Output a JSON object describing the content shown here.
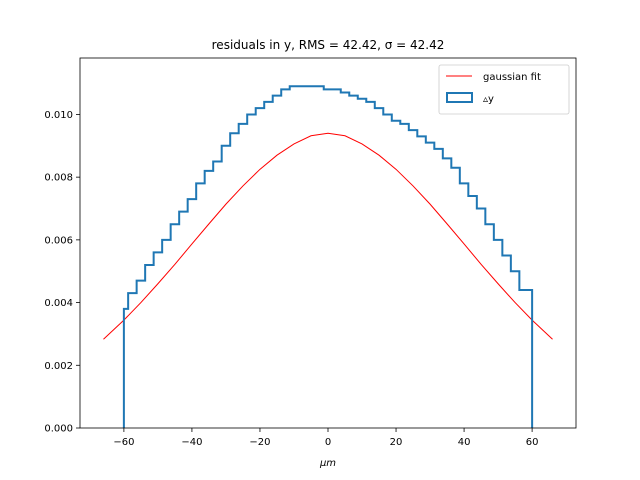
{
  "chart_data": {
    "type": "histogram",
    "title": "residuals in y, RMS = 42.42, σ = 42.42",
    "xlabel": "μm",
    "ylabel": "",
    "xlim": [
      -72.9,
      72.9
    ],
    "ylim": [
      0,
      0.0118
    ],
    "xticks": [
      -60,
      -40,
      -20,
      0,
      20,
      40,
      60
    ],
    "xtick_labels": [
      "−60",
      "−40",
      "−20",
      "0",
      "20",
      "40",
      "60"
    ],
    "yticks": [
      0,
      0.002,
      0.004,
      0.006,
      0.008,
      0.01
    ],
    "ytick_labels": [
      "0.000",
      "0.002",
      "0.004",
      "0.006",
      "0.008",
      "0.010"
    ],
    "grid": false,
    "legend_position": "top-right",
    "colors": {
      "histogram": "#1f77b4",
      "fit": "#ff0000"
    },
    "series": [
      {
        "name": "gaussian fit",
        "type": "line",
        "color": "#ff0000",
        "x": [
          -66,
          -60,
          -55,
          -50,
          -45,
          -40,
          -35,
          -30,
          -25,
          -20,
          -15,
          -10,
          -5,
          0,
          5,
          10,
          15,
          20,
          25,
          30,
          35,
          40,
          45,
          50,
          55,
          60,
          66
        ],
        "y": [
          0.00283,
          0.00344,
          0.004,
          0.0046,
          0.00522,
          0.00587,
          0.00651,
          0.00714,
          0.00772,
          0.00825,
          0.0087,
          0.00906,
          0.00932,
          0.0094,
          0.00932,
          0.00906,
          0.0087,
          0.00825,
          0.00772,
          0.00714,
          0.00651,
          0.00587,
          0.00522,
          0.0046,
          0.004,
          0.00344,
          0.00283
        ]
      },
      {
        "name": "▵y",
        "type": "step",
        "color": "#1f77b4",
        "x": [
          -60,
          -57.5,
          -55,
          -52.5,
          -50,
          -47.5,
          -45,
          -42.5,
          -40,
          -37.5,
          -35,
          -32.5,
          -30,
          -27.5,
          -25,
          -22.5,
          -20,
          -17.5,
          -15,
          -12.5,
          -10,
          -7.5,
          -5,
          -2.5,
          0,
          2.5,
          5,
          7.5,
          10,
          12.5,
          15,
          17.5,
          20,
          22.5,
          25,
          27.5,
          30,
          32.5,
          35,
          37.5,
          40,
          42.5,
          45,
          47.5,
          50,
          52.5,
          55,
          57.5,
          60
        ],
        "y": [
          0.0038,
          0.0043,
          0.0047,
          0.0052,
          0.0056,
          0.006,
          0.0065,
          0.0069,
          0.0073,
          0.0078,
          0.0082,
          0.0085,
          0.009,
          0.0094,
          0.0097,
          0.01,
          0.0102,
          0.0104,
          0.0106,
          0.0108,
          0.0109,
          0.0109,
          0.0109,
          0.0109,
          0.0108,
          0.0108,
          0.0107,
          0.0106,
          0.0105,
          0.0104,
          0.0102,
          0.01,
          0.0098,
          0.0097,
          0.0095,
          0.0093,
          0.0091,
          0.0089,
          0.0086,
          0.0083,
          0.0078,
          0.0074,
          0.007,
          0.0065,
          0.006,
          0.0055,
          0.005,
          0.0044,
          0.0044
        ]
      }
    ]
  }
}
